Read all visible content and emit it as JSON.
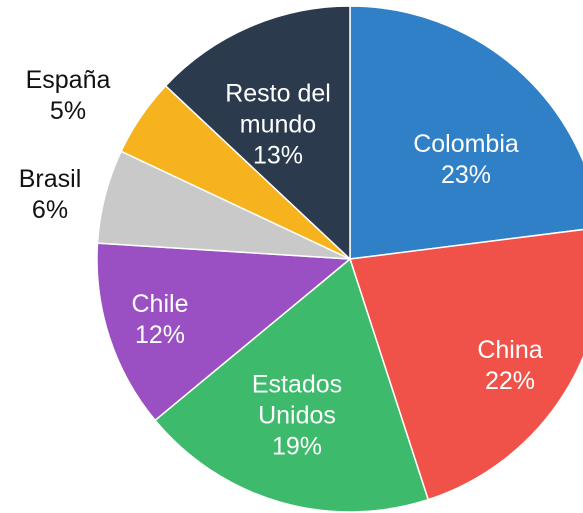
{
  "chart_data": {
    "type": "pie",
    "categories": [
      "Colombia",
      "China",
      "Estados Unidos",
      "Chile",
      "Brasil",
      "España",
      "Resto del mundo"
    ],
    "values": [
      23,
      22,
      19,
      12,
      6,
      5,
      13
    ],
    "value_labels": [
      "23%",
      "22%",
      "19%",
      "12%",
      "6%",
      "5%",
      "13%"
    ],
    "colors": [
      "#2f80c6",
      "#f0524a",
      "#3dba6c",
      "#9a4fc2",
      "#c9c9c9",
      "#f6b31d",
      "#2c3a4e"
    ]
  }
}
